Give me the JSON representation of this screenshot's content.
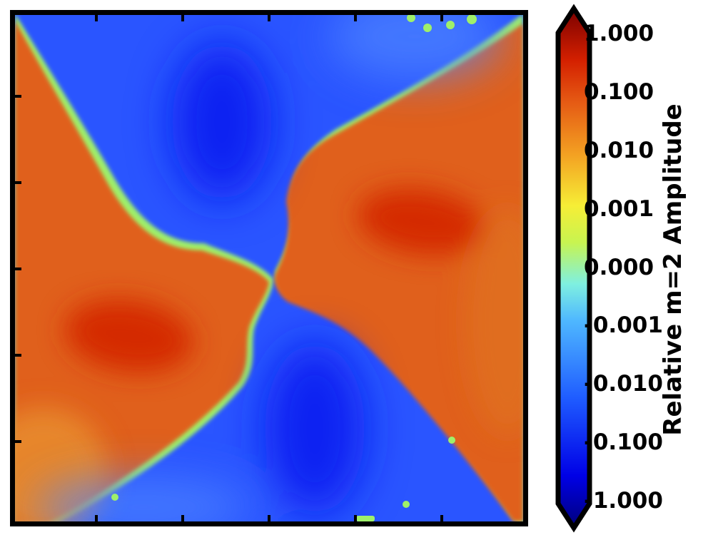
{
  "chart_data": {
    "type": "heatmap",
    "title": "",
    "xlabel": "",
    "ylabel": "",
    "colorbar": {
      "label": "Relative m=2 Amplitude",
      "scale": "symmetric-log",
      "range": [
        -1.0,
        1.0
      ],
      "extend": "both",
      "colormap": "jet",
      "tick_labels": [
        "1.000",
        "0.100",
        "0.010",
        "0.001",
        "0.000",
        "-0.001",
        "-0.010",
        "-0.100",
        "-1.000"
      ],
      "tick_values": [
        1.0,
        0.1,
        0.01,
        0.001,
        0.0,
        -0.001,
        -0.01,
        -0.1,
        -1.0
      ]
    },
    "field": {
      "pattern": "m=2 quadrupole",
      "positive_lobes": [
        "upper-right",
        "lower-left"
      ],
      "negative_lobes": [
        "upper-left",
        "lower-right"
      ],
      "positive_peak_value": 0.3,
      "negative_peak_value": -0.3
    },
    "axes": {
      "ticks_shown": true,
      "tick_labels_shown": false,
      "grid": false
    }
  },
  "colors": {
    "positive_peak": "#d42a00",
    "positive": "#e0601a",
    "zero": "#f2ee3a",
    "negative": "#2a55ff",
    "negative_peak": "#0b22f2",
    "frame": "#000000"
  }
}
